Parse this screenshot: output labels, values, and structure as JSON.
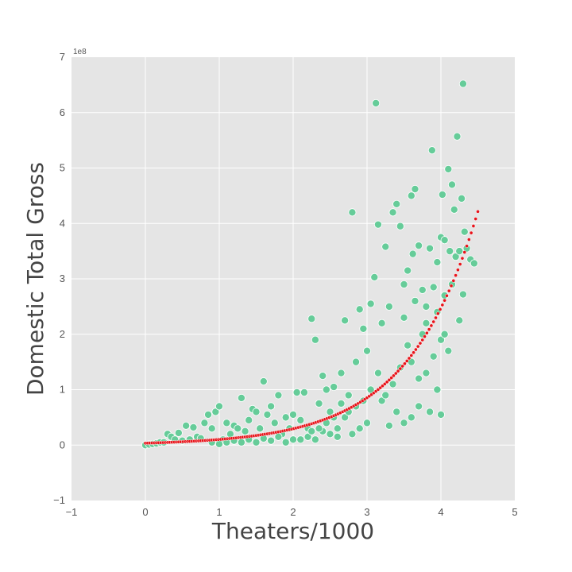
{
  "chart_data": {
    "type": "scatter",
    "title": "",
    "xlabel": "Theaters/1000",
    "ylabel": "Domestic Total Gross",
    "y_scale_note": "1e8",
    "xlim": [
      -1,
      5
    ],
    "ylim": [
      -1,
      7
    ],
    "x_ticks": [
      "−1",
      "0",
      "1",
      "2",
      "3",
      "4",
      "5"
    ],
    "y_ticks": [
      "−1",
      "0",
      "1",
      "2",
      "3",
      "4",
      "5",
      "6",
      "7"
    ],
    "grid": true,
    "background": "#e5e5e5",
    "series": [
      {
        "kind": "observed",
        "color": "#66cc99",
        "marker": "circle",
        "points": [
          [
            0.0,
            0.0
          ],
          [
            0.05,
            0.01
          ],
          [
            0.1,
            0.02
          ],
          [
            0.15,
            0.03
          ],
          [
            0.2,
            0.05
          ],
          [
            0.25,
            0.05
          ],
          [
            0.3,
            0.2
          ],
          [
            0.35,
            0.15
          ],
          [
            0.4,
            0.1
          ],
          [
            0.45,
            0.22
          ],
          [
            0.5,
            0.08
          ],
          [
            0.55,
            0.35
          ],
          [
            0.6,
            0.1
          ],
          [
            0.65,
            0.32
          ],
          [
            0.7,
            0.15
          ],
          [
            0.75,
            0.12
          ],
          [
            0.8,
            0.4
          ],
          [
            0.85,
            0.55
          ],
          [
            0.9,
            0.3
          ],
          [
            0.95,
            0.6
          ],
          [
            1.0,
            0.7
          ],
          [
            1.05,
            0.1
          ],
          [
            1.1,
            0.4
          ],
          [
            1.15,
            0.2
          ],
          [
            1.2,
            0.35
          ],
          [
            1.25,
            0.3
          ],
          [
            1.3,
            0.85
          ],
          [
            1.35,
            0.25
          ],
          [
            1.4,
            0.45
          ],
          [
            1.45,
            0.65
          ],
          [
            1.5,
            0.6
          ],
          [
            1.55,
            0.3
          ],
          [
            1.6,
            1.15
          ],
          [
            1.65,
            0.55
          ],
          [
            1.7,
            0.7
          ],
          [
            1.75,
            0.4
          ],
          [
            1.8,
            0.9
          ],
          [
            1.85,
            0.2
          ],
          [
            1.9,
            0.5
          ],
          [
            1.95,
            0.3
          ],
          [
            2.0,
            0.55
          ],
          [
            2.05,
            0.95
          ],
          [
            2.1,
            0.45
          ],
          [
            2.15,
            0.95
          ],
          [
            2.2,
            0.3
          ],
          [
            2.25,
            2.28
          ],
          [
            2.3,
            1.9
          ],
          [
            2.35,
            0.75
          ],
          [
            2.4,
            1.25
          ],
          [
            2.45,
            1.0
          ],
          [
            2.5,
            0.6
          ],
          [
            2.55,
            1.05
          ],
          [
            2.6,
            0.3
          ],
          [
            2.65,
            1.3
          ],
          [
            2.7,
            2.25
          ],
          [
            2.75,
            0.9
          ],
          [
            2.8,
            4.2
          ],
          [
            2.85,
            1.5
          ],
          [
            2.9,
            2.45
          ],
          [
            2.95,
            2.1
          ],
          [
            3.0,
            1.7
          ],
          [
            3.05,
            2.55
          ],
          [
            3.1,
            3.03
          ],
          [
            3.12,
            6.17
          ],
          [
            3.15,
            3.98
          ],
          [
            3.2,
            2.2
          ],
          [
            3.25,
            3.58
          ],
          [
            3.3,
            2.5
          ],
          [
            3.35,
            4.2
          ],
          [
            3.4,
            4.35
          ],
          [
            3.45,
            3.95
          ],
          [
            3.5,
            2.9
          ],
          [
            3.55,
            3.15
          ],
          [
            3.6,
            4.5
          ],
          [
            3.62,
            3.45
          ],
          [
            3.65,
            4.62
          ],
          [
            3.7,
            3.6
          ],
          [
            3.75,
            2.8
          ],
          [
            3.8,
            2.5
          ],
          [
            3.85,
            3.55
          ],
          [
            3.88,
            5.32
          ],
          [
            3.9,
            2.85
          ],
          [
            3.95,
            3.3
          ],
          [
            4.0,
            3.75
          ],
          [
            4.02,
            4.52
          ],
          [
            4.05,
            3.7
          ],
          [
            4.1,
            4.98
          ],
          [
            4.12,
            3.5
          ],
          [
            4.15,
            4.7
          ],
          [
            4.18,
            4.25
          ],
          [
            4.2,
            3.4
          ],
          [
            4.22,
            5.57
          ],
          [
            4.25,
            3.5
          ],
          [
            4.28,
            4.45
          ],
          [
            4.3,
            6.52
          ],
          [
            4.32,
            3.85
          ],
          [
            4.35,
            3.55
          ],
          [
            4.4,
            3.35
          ],
          [
            4.45,
            3.28
          ],
          [
            4.3,
            2.72
          ],
          [
            4.25,
            2.25
          ],
          [
            4.0,
            0.55
          ],
          [
            3.95,
            1.0
          ],
          [
            3.85,
            0.6
          ],
          [
            3.7,
            0.7
          ],
          [
            3.6,
            0.5
          ],
          [
            3.5,
            0.4
          ],
          [
            3.4,
            0.6
          ],
          [
            3.3,
            0.35
          ],
          [
            3.2,
            0.8
          ],
          [
            3.0,
            0.4
          ],
          [
            2.9,
            0.3
          ],
          [
            2.8,
            0.2
          ],
          [
            2.7,
            0.5
          ],
          [
            2.6,
            0.15
          ],
          [
            2.5,
            0.2
          ],
          [
            2.4,
            0.25
          ],
          [
            2.3,
            0.1
          ],
          [
            2.2,
            0.15
          ],
          [
            2.1,
            0.1
          ],
          [
            2.0,
            0.1
          ],
          [
            1.9,
            0.05
          ],
          [
            1.8,
            0.15
          ],
          [
            1.7,
            0.08
          ],
          [
            1.6,
            0.12
          ],
          [
            1.5,
            0.05
          ],
          [
            1.4,
            0.1
          ],
          [
            1.3,
            0.05
          ],
          [
            1.2,
            0.08
          ],
          [
            1.1,
            0.05
          ],
          [
            1.0,
            0.02
          ],
          [
            0.9,
            0.05
          ],
          [
            3.6,
            1.5
          ],
          [
            3.7,
            1.2
          ],
          [
            3.8,
            1.3
          ],
          [
            3.9,
            1.6
          ],
          [
            4.0,
            1.9
          ],
          [
            4.05,
            2.0
          ],
          [
            4.1,
            1.7
          ],
          [
            3.75,
            2.0
          ],
          [
            3.55,
            1.8
          ],
          [
            3.45,
            1.4
          ],
          [
            3.35,
            1.1
          ],
          [
            3.25,
            0.9
          ],
          [
            3.15,
            1.3
          ],
          [
            3.05,
            1.0
          ],
          [
            2.95,
            0.8
          ],
          [
            2.85,
            0.7
          ],
          [
            2.75,
            0.6
          ],
          [
            2.65,
            0.75
          ],
          [
            2.55,
            0.5
          ],
          [
            2.45,
            0.4
          ],
          [
            2.35,
            0.3
          ],
          [
            2.25,
            0.25
          ],
          [
            3.5,
            2.3
          ],
          [
            3.65,
            2.6
          ],
          [
            3.8,
            2.2
          ],
          [
            3.95,
            2.4
          ],
          [
            4.05,
            2.7
          ],
          [
            4.15,
            2.9
          ]
        ]
      },
      {
        "kind": "fitted",
        "color": "#e8141b",
        "marker": "dot",
        "equation_base": 0.0351,
        "equation_rate": 1.064,
        "x_start": 0.0,
        "x_end": 4.5,
        "x_step": 0.03
      }
    ]
  }
}
